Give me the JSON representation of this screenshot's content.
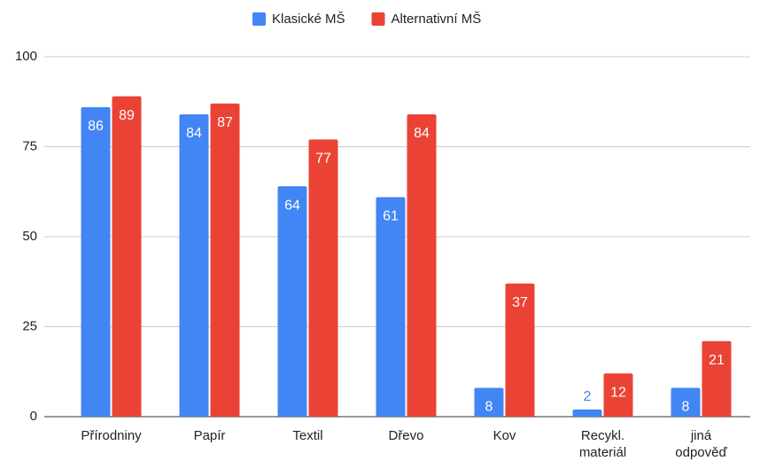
{
  "chart_data": {
    "type": "bar",
    "categories": [
      "Přírodniny",
      "Papír",
      "Textil",
      "Dřevo",
      "Kov",
      "Recykl. materiál",
      "jiná odpověď"
    ],
    "series": [
      {
        "name": "Klasické MŠ",
        "color": "#4285f4",
        "values": [
          86,
          84,
          64,
          61,
          8,
          2,
          8
        ]
      },
      {
        "name": "Alternativní MŠ",
        "color": "#ea4335",
        "values": [
          89,
          87,
          77,
          84,
          37,
          12,
          21
        ]
      }
    ],
    "ylim": [
      0,
      100
    ],
    "yticks": [
      0,
      25,
      50,
      75,
      100
    ],
    "grid": true,
    "legend": "top"
  }
}
